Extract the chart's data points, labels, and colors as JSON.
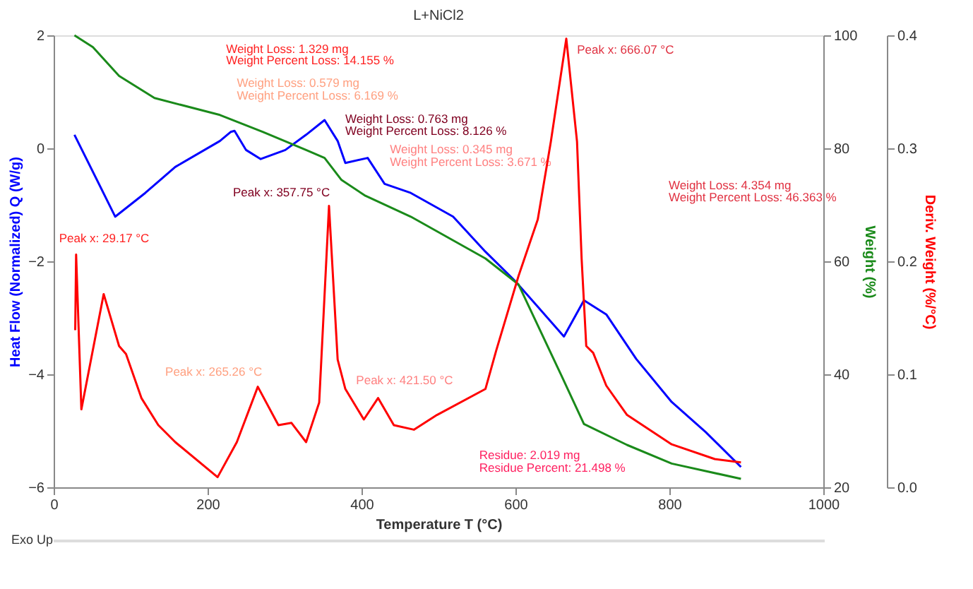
{
  "chart_data": {
    "type": "line",
    "title": "L+NiCl2",
    "xlabel": "Temperature  T  (°C)",
    "ylabel": "Heat Flow (Normalized)  Q  (W/g)",
    "y2label": "Weight (%)",
    "y3label": "Deriv. Weight (%/°C)",
    "xlim": [
      0,
      1000
    ],
    "xticks": [
      0,
      200,
      400,
      600,
      800,
      {
        "value": 1000,
        "label": "1000"
      }
    ],
    "ylim": [
      -6,
      2
    ],
    "yticks": [
      -6,
      -4,
      -2,
      0,
      2
    ],
    "y2lim": [
      20,
      100
    ],
    "y2ticks": [
      20,
      40,
      60,
      80,
      100
    ],
    "y3lim": [
      0,
      0.4
    ],
    "y3ticks": [
      {
        "value": 0,
        "label": "0.0"
      },
      0.1,
      0.2,
      0.3,
      0.4
    ],
    "grid": false,
    "line_style": "solid",
    "marker": "none",
    "series": [
      {
        "color": "#0000ff",
        "x": [
          27,
          80,
          119,
          158,
          216,
          230,
          235,
          250,
          269,
          301,
          328,
          352,
          369,
          379,
          408,
          430,
          464,
          519,
          561,
          599,
          663,
          689,
          718,
          757,
          803,
          847,
          893
        ],
        "values": [
          0.24,
          -1.21,
          -0.79,
          -0.33,
          0.13,
          0.29,
          0.31,
          -0.03,
          -0.19,
          -0.03,
          0.24,
          0.5,
          0.13,
          -0.26,
          -0.17,
          -0.63,
          -0.79,
          -1.21,
          -1.83,
          -2.34,
          -3.33,
          -2.69,
          -2.94,
          -3.73,
          -4.49,
          -5.02,
          -5.64
        ]
      },
      {
        "color": "#1a8a1a",
        "axis": "y2",
        "x": [
          27,
          51,
          85,
          131,
          216,
          272,
          328,
          352,
          374,
          405,
          464,
          561,
          604,
          660,
          689,
          745,
          803,
          893
        ],
        "values": [
          100,
          97.9,
          92.8,
          88.9,
          85.9,
          82.9,
          79.7,
          78.3,
          74.4,
          71.6,
          67.9,
          60.5,
          55.9,
          39.7,
          31.2,
          27.5,
          24.2,
          21.5
        ]
      },
      {
        "color": "#ff0000",
        "axis": "y3",
        "x": [
          28,
          29.17,
          36,
          65,
          85,
          94,
          114,
          136,
          158,
          213,
          238,
          265.26,
          292,
          309,
          328,
          345,
          357.75,
          369,
          379,
          403,
          421.5,
          442,
          468,
          498,
          561,
          575,
          604,
          629,
          646,
          666.07,
          680,
          686,
          692,
          701,
          718,
          745,
          803,
          859,
          893
        ],
        "values": [
          0.139,
          0.206,
          0.069,
          0.171,
          0.125,
          0.118,
          0.079,
          0.055,
          0.04,
          0.009,
          0.04,
          0.089,
          0.055,
          0.057,
          0.04,
          0.075,
          0.249,
          0.113,
          0.087,
          0.06,
          0.079,
          0.055,
          0.051,
          0.064,
          0.087,
          0.121,
          0.187,
          0.237,
          0.306,
          0.397,
          0.306,
          0.202,
          0.125,
          0.119,
          0.09,
          0.064,
          0.038,
          0.025,
          0.022
        ]
      }
    ],
    "annotations": [
      "Weight Loss: 1.329 mg",
      "Weight Percent Loss: 14.155 %",
      "Weight Loss: 0.579 mg",
      "Weight Percent Loss: 6.169 %",
      "Weight Loss: 0.763 mg",
      "Weight Percent Loss: 8.126 %",
      "Weight Loss: 0.345 mg",
      "Weight Percent Loss: 3.671 %",
      "Weight Loss: 4.354 mg",
      "Weight Percent Loss: 46.363 %",
      "Peak x: 666.07 °C",
      "Peak x: 357.75 °C",
      "Peak x: 29.17 °C",
      "Peak x: 265.26 °C",
      "Peak x: 421.50 °C",
      "Residue: 2.019 mg",
      "Residue Percent: 21.498 %",
      "Exo Up"
    ]
  }
}
